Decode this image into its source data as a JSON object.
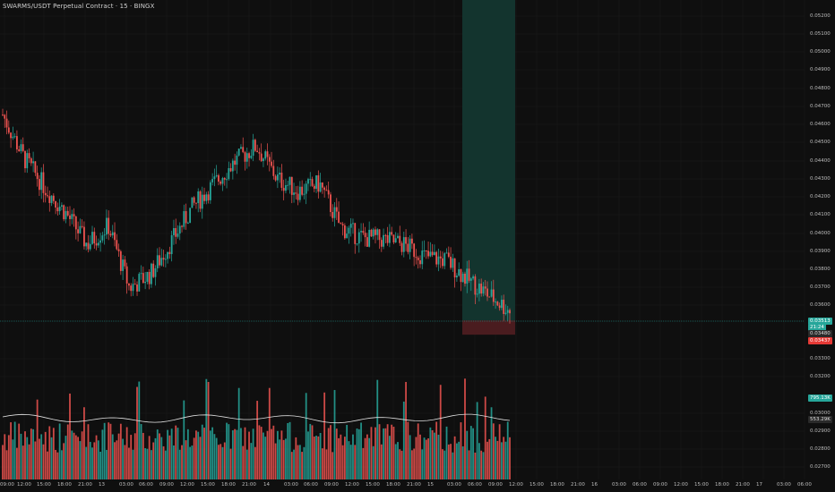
{
  "header": {
    "title": "SWARMS/USDT Perpetual Contract · 15 · BINGX"
  },
  "colors": {
    "background": "#0f0f0f",
    "up": "#26a69a",
    "down": "#ef5350",
    "grid": "#1c1c1c",
    "profit_zone": "#13342e",
    "loss_zone": "#4a1c1f",
    "volume_ma": "#e0e0e0"
  },
  "price_axis": {
    "labels": [
      "0.05200",
      "0.05100",
      "0.05000",
      "0.04900",
      "0.04800",
      "0.04700",
      "0.04600",
      "0.04500",
      "0.04400",
      "0.04300",
      "0.04200",
      "0.04100",
      "0.04000",
      "0.03900",
      "0.03800",
      "0.03700",
      "0.03600",
      "0.03300",
      "0.03200",
      "0.03000",
      "0.02900",
      "0.02800",
      "0.02700"
    ]
  },
  "badges": {
    "last_price": "0.03513",
    "countdown": "21:24",
    "stop_price": "0.03480",
    "entry_price": "0.03437",
    "volume_value": "795.13K",
    "volume_ma_value": "553.29K"
  },
  "time_axis": {
    "labels": [
      "09:00",
      "12:00",
      "15:00",
      "18:00",
      "21:00",
      "13",
      "03:00",
      "06:00",
      "09:00",
      "12:00",
      "15:00",
      "18:00",
      "21:00",
      "14",
      "03:00",
      "06:00",
      "09:00",
      "12:00",
      "15:00",
      "18:00",
      "21:00",
      "15",
      "03:00",
      "06:00",
      "09:00",
      "12:00",
      "15:00",
      "18:00",
      "21:00",
      "16",
      "03:00",
      "06:00",
      "09:00",
      "12:00",
      "15:00",
      "18:00",
      "21:00",
      "17",
      "03:00",
      "06:00"
    ]
  },
  "chart_data": {
    "type": "candlestick",
    "symbol": "SWARMS/USDT Perpetual Contract",
    "interval": "15",
    "exchange": "BINGX",
    "ylim": [
      0.0335,
      0.0527
    ],
    "anchors": [
      {
        "t": "09:00",
        "price": 0.0465
      },
      {
        "t": "12:00",
        "price": 0.044
      },
      {
        "t": "15:00",
        "price": 0.0423
      },
      {
        "t": "18:00",
        "price": 0.0408
      },
      {
        "t": "21:00",
        "price": 0.039
      },
      {
        "t": "13",
        "price": 0.0401
      },
      {
        "t": "03:00",
        "price": 0.0365
      },
      {
        "t": "06:00",
        "price": 0.0373
      },
      {
        "t": "09:00",
        "price": 0.0392
      },
      {
        "t": "12:00",
        "price": 0.0412
      },
      {
        "t": "15:00",
        "price": 0.0425
      },
      {
        "t": "18:00",
        "price": 0.0438
      },
      {
        "t": "21:00",
        "price": 0.0447
      },
      {
        "t": "14",
        "price": 0.0428
      },
      {
        "t": "03:00",
        "price": 0.0421
      },
      {
        "t": "06:00",
        "price": 0.0425
      },
      {
        "t": "09:00",
        "price": 0.04
      },
      {
        "t": "12:00",
        "price": 0.0394
      },
      {
        "t": "15:00",
        "price": 0.0393
      },
      {
        "t": "18:00",
        "price": 0.039
      },
      {
        "t": "21:00",
        "price": 0.0383
      },
      {
        "t": "15",
        "price": 0.0381
      },
      {
        "t": "03:00",
        "price": 0.037
      },
      {
        "t": "06:00",
        "price": 0.0361
      },
      {
        "t": "09:00",
        "price": 0.0352
      }
    ],
    "last_price": 0.03513,
    "position": {
      "entry": 0.03437,
      "stop": 0.0348,
      "target_above": 0.0527
    },
    "volume_ma": 553290,
    "volume_last": 795130
  }
}
